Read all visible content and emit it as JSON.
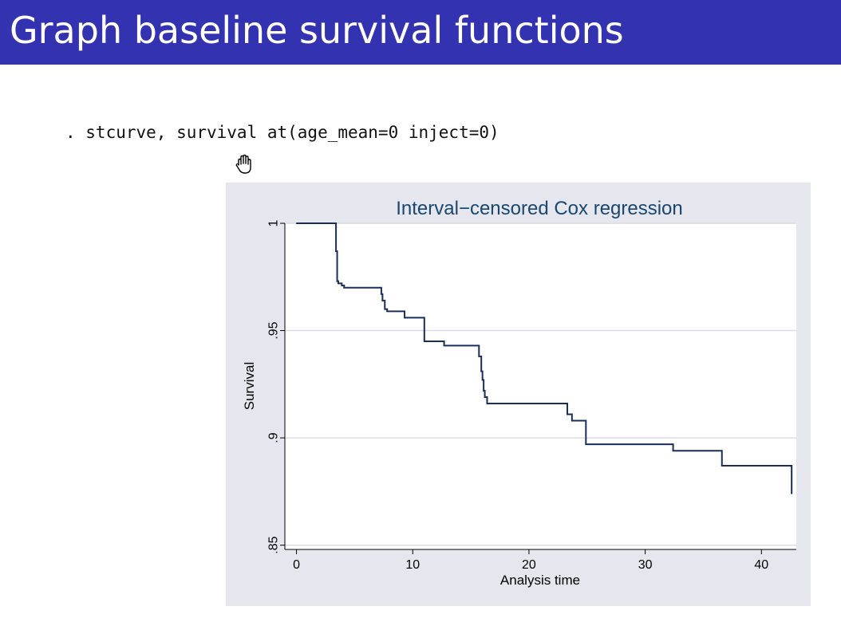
{
  "slide": {
    "title": "Graph baseline survival functions",
    "command": ". stcurve, survival at(age_mean=0 inject=0)"
  },
  "colors": {
    "title_bar": "#3333b2",
    "graph_background": "#e6e6ef",
    "line": "#1a2e5c"
  },
  "chart_data": {
    "type": "line",
    "title": "Interval−censored Cox regression",
    "xlabel": "Analysis time",
    "ylabel": "Survival",
    "xlim": [
      -1,
      43
    ],
    "ylim": [
      0.848,
      1.0
    ],
    "xticks": [
      0,
      10,
      20,
      30,
      40
    ],
    "xtick_labels": [
      "0",
      "10",
      "20",
      "30",
      "40"
    ],
    "yticks": [
      0.85,
      0.9,
      0.95,
      1
    ],
    "ytick_labels": [
      ".85",
      ".9",
      ".95",
      "1"
    ],
    "grid": true,
    "legend": "none",
    "series": [
      {
        "step": "post",
        "x": [
          0,
          3.4,
          3.5,
          3.6,
          3.9,
          4.1,
          7.3,
          7.4,
          7.6,
          7.8,
          9.3,
          11.0,
          12.7,
          15.7,
          15.9,
          16.0,
          16.1,
          16.2,
          16.4,
          20.3,
          23.3,
          23.7,
          24.9,
          29.1,
          32.4,
          36.6,
          42.6
        ],
        "y": [
          1.0,
          0.987,
          0.973,
          0.972,
          0.971,
          0.97,
          0.967,
          0.964,
          0.96,
          0.959,
          0.956,
          0.945,
          0.943,
          0.938,
          0.931,
          0.927,
          0.922,
          0.919,
          0.916,
          0.916,
          0.911,
          0.908,
          0.897,
          0.897,
          0.894,
          0.887,
          0.874
        ]
      }
    ]
  }
}
